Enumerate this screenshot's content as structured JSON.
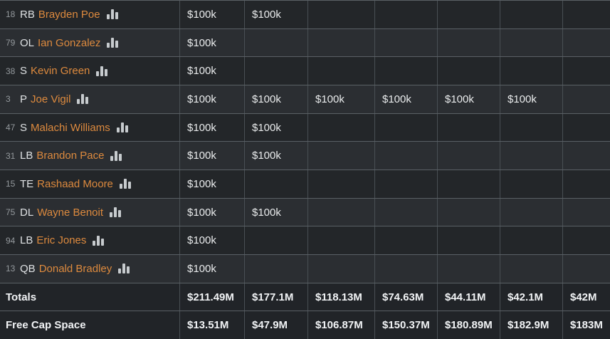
{
  "colors": {
    "accent_orange": "#dd8a3e"
  },
  "salary_columns_count": 7,
  "players": [
    {
      "number": "18",
      "position": "RB",
      "name": "Brayden Poe",
      "stats_icon": "bar-chart",
      "salaries": [
        "$100k",
        "$100k",
        null,
        null,
        null,
        null,
        null
      ]
    },
    {
      "number": "79",
      "position": "OL",
      "name": "Ian Gonzalez",
      "stats_icon": "bar-chart",
      "salaries": [
        "$100k",
        null,
        null,
        null,
        null,
        null,
        null
      ]
    },
    {
      "number": "38",
      "position": "S",
      "name": "Kevin Green",
      "stats_icon": "bar-chart",
      "salaries": [
        "$100k",
        null,
        null,
        null,
        null,
        null,
        null
      ]
    },
    {
      "number": "3",
      "position": "P",
      "name": "Joe Vigil",
      "stats_icon": "bar-chart",
      "salaries": [
        "$100k",
        "$100k",
        "$100k",
        "$100k",
        "$100k",
        "$100k",
        null
      ]
    },
    {
      "number": "47",
      "position": "S",
      "name": "Malachi Williams",
      "stats_icon": "bar-chart",
      "salaries": [
        "$100k",
        "$100k",
        null,
        null,
        null,
        null,
        null
      ]
    },
    {
      "number": "31",
      "position": "LB",
      "name": "Brandon Pace",
      "stats_icon": "bar-chart",
      "salaries": [
        "$100k",
        "$100k",
        null,
        null,
        null,
        null,
        null
      ]
    },
    {
      "number": "15",
      "position": "TE",
      "name": "Rashaad Moore",
      "stats_icon": "bar-chart",
      "salaries": [
        "$100k",
        null,
        null,
        null,
        null,
        null,
        null
      ]
    },
    {
      "number": "75",
      "position": "DL",
      "name": "Wayne Benoit",
      "stats_icon": "bar-chart",
      "salaries": [
        "$100k",
        "$100k",
        null,
        null,
        null,
        null,
        null
      ]
    },
    {
      "number": "94",
      "position": "LB",
      "name": "Eric Jones",
      "stats_icon": "bar-chart",
      "salaries": [
        "$100k",
        null,
        null,
        null,
        null,
        null,
        null
      ]
    },
    {
      "number": "13",
      "position": "QB",
      "name": "Donald Bradley",
      "stats_icon": "bar-chart",
      "salaries": [
        "$100k",
        null,
        null,
        null,
        null,
        null,
        null
      ]
    }
  ],
  "summary_rows": [
    {
      "label": "Totals",
      "values": [
        "$211.49M",
        "$177.1M",
        "$118.13M",
        "$74.63M",
        "$44.11M",
        "$42.1M",
        "$42M"
      ]
    },
    {
      "label": "Free Cap Space",
      "values": [
        "$13.51M",
        "$47.9M",
        "$106.87M",
        "$150.37M",
        "$180.89M",
        "$182.9M",
        "$183M"
      ]
    }
  ]
}
